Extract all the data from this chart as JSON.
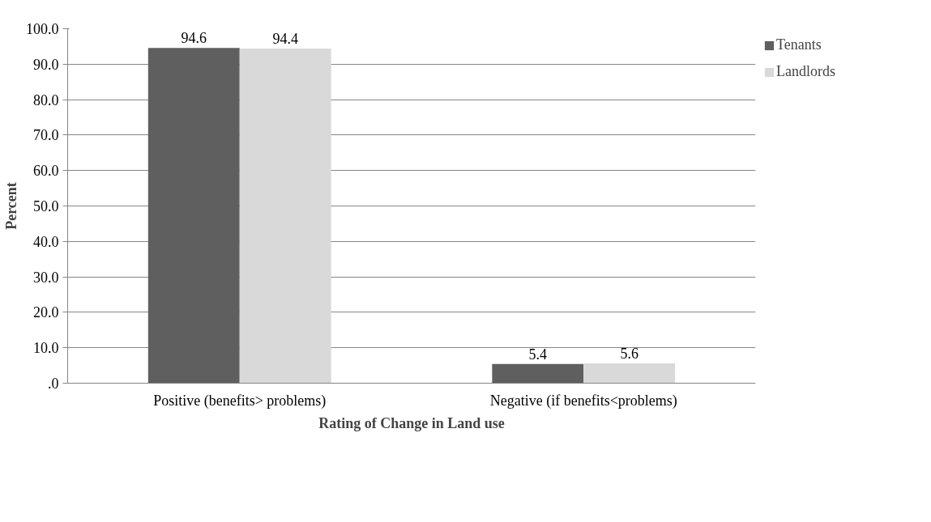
{
  "chart_data": {
    "type": "bar",
    "xlabel": "Rating of Change in Land use",
    "ylabel": "Percent",
    "categories": [
      "Positive (benefits> problems)",
      "Negative (if benefits<problems)"
    ],
    "series": [
      {
        "name": "Tenants",
        "color": "#5f5f5f",
        "values": [
          94.6,
          5.4
        ]
      },
      {
        "name": "Landlords",
        "color": "#d9d9d9",
        "values": [
          94.4,
          5.6
        ]
      }
    ],
    "ylim": [
      0,
      100
    ],
    "yticks": [
      {
        "value": 0,
        "label": ".0"
      },
      {
        "value": 10,
        "label": "10.0"
      },
      {
        "value": 20,
        "label": "20.0"
      },
      {
        "value": 30,
        "label": "30.0"
      },
      {
        "value": 40,
        "label": "40.0"
      },
      {
        "value": 50,
        "label": "50.0"
      },
      {
        "value": 60,
        "label": "60.0"
      },
      {
        "value": 70,
        "label": "70.0"
      },
      {
        "value": 80,
        "label": "80.0"
      },
      {
        "value": 90,
        "label": "90.0"
      },
      {
        "value": 100,
        "label": "100.0"
      }
    ],
    "grid": "y",
    "legend": "right",
    "data_labels": true
  }
}
